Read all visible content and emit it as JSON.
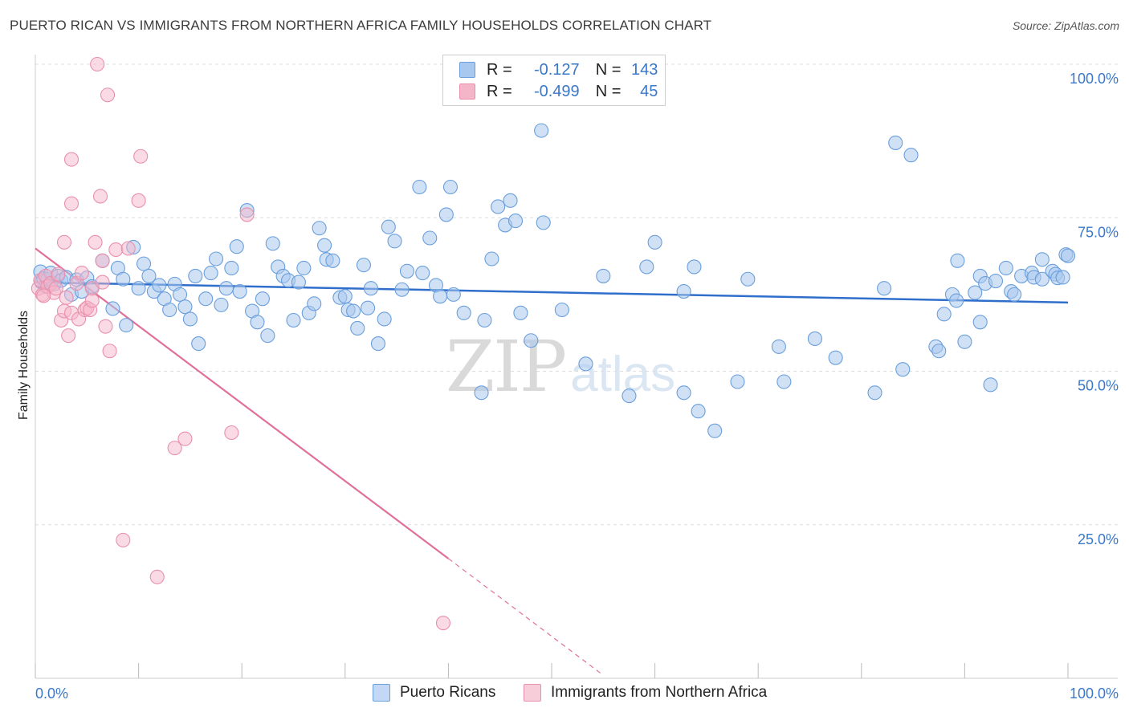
{
  "title": "PUERTO RICAN VS IMMIGRANTS FROM NORTHERN AFRICA FAMILY HOUSEHOLDS CORRELATION CHART",
  "source": "Source: ZipAtlas.com",
  "watermark": {
    "zip": "ZIP",
    "atlas": "atlas"
  },
  "legend": {
    "r_label": "R =",
    "n_label": "N =",
    "rows": [
      {
        "r": "-0.127",
        "n": "143"
      },
      {
        "r": "-0.499",
        "n": "45"
      }
    ]
  },
  "colors": {
    "blue_fill": "#a9c8ef",
    "blue_stroke": "#6a9fdc",
    "blue_line": "#2f6fcb",
    "pink_fill": "#f5b5c9",
    "pink_stroke": "#e890ad",
    "pink_line": "#e0709a",
    "tick_text": "#3b78c9",
    "grid": "#dddddd"
  },
  "chart_data": {
    "type": "scatter",
    "title": "PUERTO RICAN VS IMMIGRANTS FROM NORTHERN AFRICA FAMILY HOUSEHOLDS CORRELATION CHART",
    "xlabel": "",
    "ylabel": "Family Households",
    "xlim": [
      0,
      100
    ],
    "ylim": [
      0,
      100
    ],
    "x_tick_labels": [
      "0.0%",
      "100.0%"
    ],
    "y_ticks": [
      {
        "value": 100,
        "label": "100.0%"
      },
      {
        "value": 75,
        "label": "75.0%"
      },
      {
        "value": 50,
        "label": "50.0%"
      },
      {
        "value": 25,
        "label": "25.0%"
      }
    ],
    "series": [
      {
        "name": "Puerto Ricans",
        "r": -0.127,
        "n": 143,
        "trend": {
          "x": [
            0,
            100
          ],
          "y": [
            64.5,
            61.2
          ]
        },
        "points": [
          [
            0.5,
            66.2
          ],
          [
            0.6,
            64.5
          ],
          [
            0.8,
            65.1
          ],
          [
            1.0,
            63.8
          ],
          [
            1.2,
            65.0
          ],
          [
            1.5,
            66.0
          ],
          [
            1.8,
            64.2
          ],
          [
            2.2,
            65.5
          ],
          [
            2.5,
            64.8
          ],
          [
            3.0,
            65.3
          ],
          [
            3.5,
            62.5
          ],
          [
            4.0,
            64.9
          ],
          [
            4.5,
            63.0
          ],
          [
            5.0,
            65.2
          ],
          [
            5.5,
            63.8
          ],
          [
            6.5,
            68.0
          ],
          [
            7.5,
            60.2
          ],
          [
            8.0,
            66.8
          ],
          [
            8.5,
            65.0
          ],
          [
            8.8,
            57.5
          ],
          [
            9.5,
            70.2
          ],
          [
            10.0,
            63.5
          ],
          [
            10.5,
            67.5
          ],
          [
            11.0,
            65.5
          ],
          [
            11.5,
            63.0
          ],
          [
            12.0,
            64.0
          ],
          [
            12.5,
            61.8
          ],
          [
            13.0,
            60.0
          ],
          [
            13.5,
            64.2
          ],
          [
            14.0,
            62.5
          ],
          [
            14.5,
            60.5
          ],
          [
            15.0,
            58.5
          ],
          [
            15.5,
            65.5
          ],
          [
            15.8,
            54.5
          ],
          [
            16.5,
            61.8
          ],
          [
            17.0,
            66.0
          ],
          [
            17.5,
            68.3
          ],
          [
            18.0,
            60.8
          ],
          [
            18.5,
            63.5
          ],
          [
            19.0,
            66.8
          ],
          [
            19.5,
            70.3
          ],
          [
            19.8,
            63.0
          ],
          [
            20.5,
            76.2
          ],
          [
            21.0,
            59.8
          ],
          [
            21.5,
            58.0
          ],
          [
            22.0,
            61.8
          ],
          [
            22.5,
            55.8
          ],
          [
            23.0,
            70.8
          ],
          [
            23.5,
            67.0
          ],
          [
            24.0,
            65.5
          ],
          [
            24.5,
            64.8
          ],
          [
            25.0,
            58.3
          ],
          [
            25.5,
            64.5
          ],
          [
            26.0,
            66.8
          ],
          [
            26.5,
            59.5
          ],
          [
            27.0,
            61.0
          ],
          [
            27.5,
            73.3
          ],
          [
            28.0,
            70.5
          ],
          [
            28.2,
            68.2
          ],
          [
            28.8,
            68.0
          ],
          [
            29.5,
            62.0
          ],
          [
            30.0,
            62.2
          ],
          [
            30.3,
            60.0
          ],
          [
            30.8,
            59.8
          ],
          [
            31.2,
            57.0
          ],
          [
            31.8,
            67.3
          ],
          [
            32.2,
            60.3
          ],
          [
            32.5,
            63.5
          ],
          [
            33.2,
            54.5
          ],
          [
            33.8,
            58.5
          ],
          [
            34.2,
            73.5
          ],
          [
            34.8,
            71.2
          ],
          [
            35.5,
            63.3
          ],
          [
            36.0,
            66.3
          ],
          [
            37.2,
            80.0
          ],
          [
            37.5,
            66.0
          ],
          [
            38.2,
            71.7
          ],
          [
            38.8,
            64.0
          ],
          [
            39.2,
            62.2
          ],
          [
            39.8,
            75.5
          ],
          [
            40.2,
            80.0
          ],
          [
            40.5,
            62.5
          ],
          [
            41.5,
            59.5
          ],
          [
            43.2,
            46.5
          ],
          [
            43.5,
            58.3
          ],
          [
            44.2,
            68.3
          ],
          [
            44.8,
            76.8
          ],
          [
            45.5,
            73.8
          ],
          [
            46.0,
            77.8
          ],
          [
            46.5,
            74.5
          ],
          [
            47.0,
            59.5
          ],
          [
            48.0,
            55.0
          ],
          [
            49.0,
            89.2
          ],
          [
            49.2,
            74.2
          ],
          [
            51.0,
            60.0
          ],
          [
            53.3,
            51.2
          ],
          [
            55.0,
            65.5
          ],
          [
            57.5,
            46.0
          ],
          [
            59.2,
            67.0
          ],
          [
            60.0,
            71.0
          ],
          [
            62.8,
            63.0
          ],
          [
            62.8,
            46.5
          ],
          [
            63.8,
            67.0
          ],
          [
            64.2,
            43.5
          ],
          [
            65.8,
            40.3
          ],
          [
            69.0,
            65.0
          ],
          [
            68.0,
            48.3
          ],
          [
            72.0,
            54.0
          ],
          [
            72.5,
            48.3
          ],
          [
            75.5,
            55.3
          ],
          [
            77.5,
            52.2
          ],
          [
            81.3,
            46.5
          ],
          [
            82.2,
            63.5
          ],
          [
            83.3,
            87.2
          ],
          [
            84.0,
            50.3
          ],
          [
            84.8,
            85.2
          ],
          [
            87.2,
            54.0
          ],
          [
            87.5,
            53.3
          ],
          [
            88.0,
            59.3
          ],
          [
            88.8,
            62.5
          ],
          [
            89.2,
            61.5
          ],
          [
            89.3,
            68.0
          ],
          [
            90.0,
            54.8
          ],
          [
            91.0,
            62.8
          ],
          [
            91.5,
            58.0
          ],
          [
            91.5,
            65.5
          ],
          [
            92.0,
            64.3
          ],
          [
            92.5,
            47.8
          ],
          [
            93.0,
            64.7
          ],
          [
            94.0,
            66.8
          ],
          [
            94.5,
            63.0
          ],
          [
            94.8,
            62.5
          ],
          [
            95.5,
            65.5
          ],
          [
            96.5,
            66.0
          ],
          [
            96.7,
            65.3
          ],
          [
            97.5,
            68.2
          ],
          [
            97.5,
            65.0
          ],
          [
            98.5,
            66.3
          ],
          [
            98.8,
            65.8
          ],
          [
            99.0,
            65.2
          ],
          [
            99.5,
            65.3
          ],
          [
            99.8,
            69.0
          ],
          [
            100.0,
            68.8
          ]
        ]
      },
      {
        "name": "Immigrants from Northern Africa",
        "r": -0.499,
        "n": 45,
        "trend": {
          "x": [
            0,
            40
          ],
          "y": [
            70.0,
            19.5
          ],
          "dashed_to": {
            "x": 55,
            "y": 0.5
          }
        },
        "points": [
          [
            0.3,
            63.5
          ],
          [
            0.5,
            64.8
          ],
          [
            0.7,
            62.5
          ],
          [
            1.0,
            65.5
          ],
          [
            1.2,
            63.8
          ],
          [
            1.5,
            64.3
          ],
          [
            1.8,
            62.8
          ],
          [
            2.0,
            63.5
          ],
          [
            2.2,
            65.8
          ],
          [
            2.5,
            58.3
          ],
          [
            2.8,
            71.0
          ],
          [
            2.8,
            59.8
          ],
          [
            3.0,
            62.0
          ],
          [
            3.2,
            55.8
          ],
          [
            3.5,
            59.5
          ],
          [
            3.5,
            77.3
          ],
          [
            3.5,
            84.5
          ],
          [
            4.0,
            64.3
          ],
          [
            4.2,
            58.5
          ],
          [
            4.5,
            66.0
          ],
          [
            4.8,
            60.0
          ],
          [
            5.0,
            60.3
          ],
          [
            5.3,
            60.0
          ],
          [
            5.5,
            61.5
          ],
          [
            5.5,
            63.5
          ],
          [
            5.8,
            71.0
          ],
          [
            6.0,
            100.0
          ],
          [
            6.3,
            78.5
          ],
          [
            6.5,
            64.5
          ],
          [
            6.5,
            68.0
          ],
          [
            6.8,
            57.3
          ],
          [
            7.0,
            95.0
          ],
          [
            7.2,
            53.3
          ],
          [
            7.8,
            69.8
          ],
          [
            8.5,
            22.5
          ],
          [
            9.0,
            70.0
          ],
          [
            10.0,
            77.8
          ],
          [
            10.2,
            85.0
          ],
          [
            11.8,
            16.5
          ],
          [
            13.5,
            37.5
          ],
          [
            14.5,
            39.0
          ],
          [
            19.0,
            40.0
          ],
          [
            20.5,
            75.5
          ],
          [
            39.5,
            9.0
          ],
          [
            0.8,
            62.3
          ]
        ]
      }
    ]
  }
}
